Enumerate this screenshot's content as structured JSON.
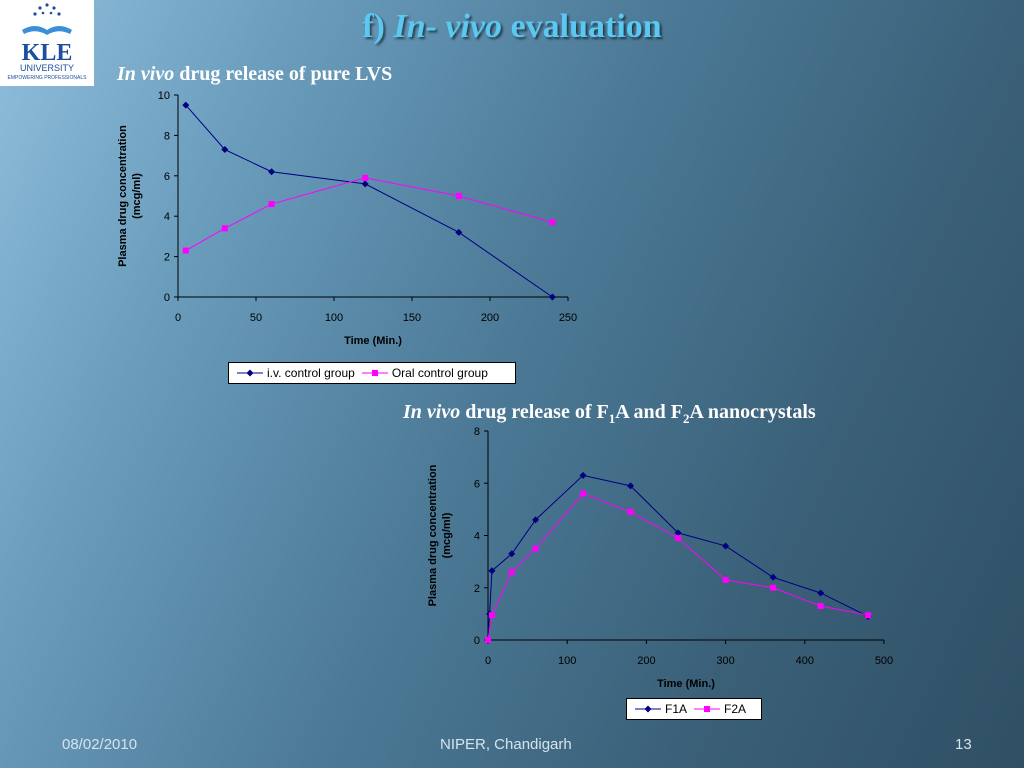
{
  "logo": {
    "name": "KLE",
    "line1": "UNIVERSITY",
    "line2": "EMPOWERING PROFESSIONALS",
    "color": "#1b4e9c"
  },
  "title": {
    "prefix": "f) ",
    "italic": "In- vivo",
    "suffix": " evaluation"
  },
  "subtitle1": {
    "italic": "In vivo",
    "text": " drug release of pure LVS"
  },
  "subtitle2": {
    "italic": "In vivo",
    "p1": " drug release of F",
    "s1": "1",
    "p2": "A and F",
    "s2": "2",
    "p3": "A nanocrystals"
  },
  "chart_data": [
    {
      "type": "line",
      "xlabel": "Time (Min.)",
      "ylabel": "Plasma drug concentration",
      "ylabel2": "(mcg/ml)",
      "xlim": [
        0,
        250
      ],
      "ylim": [
        0,
        10
      ],
      "xticks": [
        0,
        50,
        100,
        150,
        200,
        250
      ],
      "yticks": [
        0,
        2,
        4,
        6,
        8,
        10
      ],
      "grid": false,
      "legend": "bottom",
      "series": [
        {
          "name": "i.v. control group",
          "color": "#000080",
          "marker": "diamond",
          "points": [
            [
              5,
              9.5
            ],
            [
              30,
              7.3
            ],
            [
              60,
              6.2
            ],
            [
              120,
              5.6
            ],
            [
              180,
              3.2
            ],
            [
              240,
              0
            ]
          ]
        },
        {
          "name": "Oral control group",
          "color": "#ff00ff",
          "marker": "square",
          "points": [
            [
              5,
              2.3
            ],
            [
              30,
              3.4
            ],
            [
              60,
              4.6
            ],
            [
              120,
              5.9
            ],
            [
              180,
              5.0
            ],
            [
              240,
              3.7
            ]
          ]
        }
      ]
    },
    {
      "type": "line",
      "xlabel": "Time (Min.)",
      "ylabel": "Plasma drug concentration",
      "ylabel2": "(mcg/ml)",
      "xlim": [
        0,
        500
      ],
      "ylim": [
        0,
        8
      ],
      "xticks": [
        0,
        100,
        200,
        300,
        400,
        500
      ],
      "yticks": [
        0,
        2,
        4,
        6,
        8
      ],
      "grid": false,
      "legend": "bottom",
      "series": [
        {
          "name": "F1A",
          "color": "#000080",
          "marker": "diamond",
          "points": [
            [
              0,
              0
            ],
            [
              2,
              1.0
            ],
            [
              5,
              2.65
            ],
            [
              30,
              3.3
            ],
            [
              60,
              4.6
            ],
            [
              120,
              6.3
            ],
            [
              180,
              5.9
            ],
            [
              240,
              4.1
            ],
            [
              300,
              3.6
            ],
            [
              360,
              2.4
            ],
            [
              420,
              1.8
            ],
            [
              480,
              0.9
            ]
          ]
        },
        {
          "name": "F2A",
          "color": "#ff00ff",
          "marker": "square",
          "points": [
            [
              0,
              0
            ],
            [
              5,
              0.95
            ],
            [
              30,
              2.6
            ],
            [
              60,
              3.5
            ],
            [
              120,
              5.6
            ],
            [
              180,
              4.9
            ],
            [
              240,
              3.9
            ],
            [
              300,
              2.3
            ],
            [
              360,
              2.0
            ],
            [
              420,
              1.3
            ],
            [
              480,
              0.95
            ]
          ]
        }
      ]
    }
  ],
  "footer": {
    "date": "08/02/2010",
    "center": "NIPER, Chandigarh",
    "page": "13"
  }
}
